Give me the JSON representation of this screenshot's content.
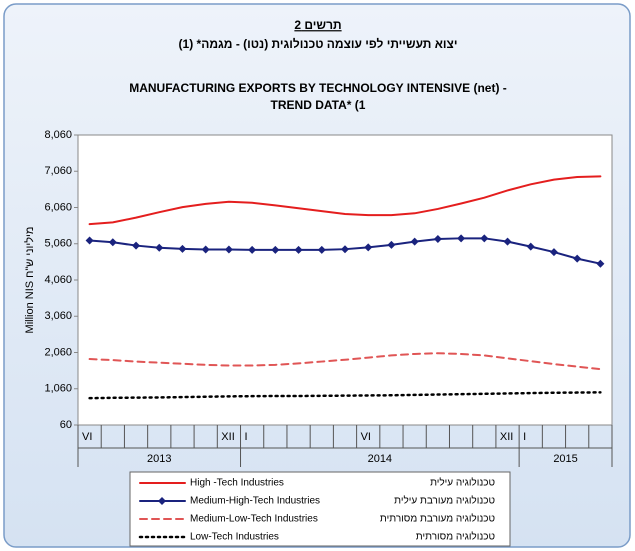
{
  "chart_data": {
    "type": "line",
    "caption": "תרשים 2",
    "subtitle_he": "יצוא תעשייתי לפי עוצמה טכנולוגית (נטו) - מגמה* (1)",
    "title": [
      "MANUFACTURING  EXPORTS  BY  TECHNOLOGY  INTENSIVE  (net) -",
      "TREND DATA* (1"
    ],
    "y_label": "Million NIS מיליוני ש\"ח",
    "categories": [
      "VI",
      null,
      null,
      null,
      null,
      null,
      "XII",
      "I",
      null,
      null,
      null,
      null,
      "VI",
      null,
      null,
      null,
      null,
      null,
      "XII",
      "I",
      null,
      null,
      null
    ],
    "year_groups": [
      {
        "label": "2013",
        "months": 7
      },
      {
        "label": "2014",
        "months": 12
      },
      {
        "label": "2015",
        "months": 4
      }
    ],
    "ylim": [
      60,
      8060
    ],
    "yticks": [
      60,
      {
        "value": 1060,
        "label": "1,060"
      },
      {
        "value": 2060,
        "label": "2,060"
      },
      {
        "value": 3060,
        "label": "3,060"
      },
      {
        "value": 4060,
        "label": "4,060"
      },
      {
        "value": 5060,
        "label": "5,060"
      },
      {
        "value": 6060,
        "label": "6,060"
      },
      {
        "value": 7060,
        "label": "7,060"
      },
      {
        "value": 8060,
        "label": "8,060"
      }
    ],
    "series": [
      {
        "name": "High -Tech Industries",
        "name_he": "טכנולוגיה עילית",
        "color": "#e41e1e",
        "line_style": "solid",
        "values": [
          5600,
          5650,
          5780,
          5930,
          6070,
          6160,
          6220,
          6190,
          6120,
          6040,
          5960,
          5880,
          5850,
          5850,
          5900,
          6020,
          6170,
          6330,
          6530,
          6700,
          6830,
          6900,
          6920
        ]
      },
      {
        "name": "Medium-High-Tech Industries",
        "name_he": "טכנולוגיה מעורבת עילית",
        "color": "#1a237e",
        "line_style": "solid",
        "marker": "diamond",
        "values": [
          5150,
          5100,
          5010,
          4950,
          4920,
          4900,
          4900,
          4890,
          4890,
          4890,
          4890,
          4910,
          4960,
          5030,
          5120,
          5190,
          5210,
          5210,
          5120,
          4980,
          4830,
          4650,
          4510
        ]
      },
      {
        "name": "Medium-Low-Tech Industries",
        "name_he": "טכנולוגיה מעורבת מסורתית",
        "color": "#e05555",
        "line_style": "dashed",
        "values": [
          1880,
          1850,
          1810,
          1780,
          1750,
          1720,
          1700,
          1700,
          1720,
          1760,
          1810,
          1860,
          1920,
          1980,
          2020,
          2040,
          2020,
          1980,
          1900,
          1820,
          1740,
          1670,
          1600
        ]
      },
      {
        "name": "Low-Tech Industries",
        "name_he": "טכנולוגיה מסורתית",
        "color": "#000000",
        "line_style": "dotted",
        "values": [
          800,
          810,
          815,
          820,
          830,
          840,
          850,
          855,
          860,
          860,
          865,
          870,
          875,
          880,
          890,
          900,
          910,
          920,
          930,
          940,
          950,
          955,
          960
        ]
      }
    ]
  }
}
